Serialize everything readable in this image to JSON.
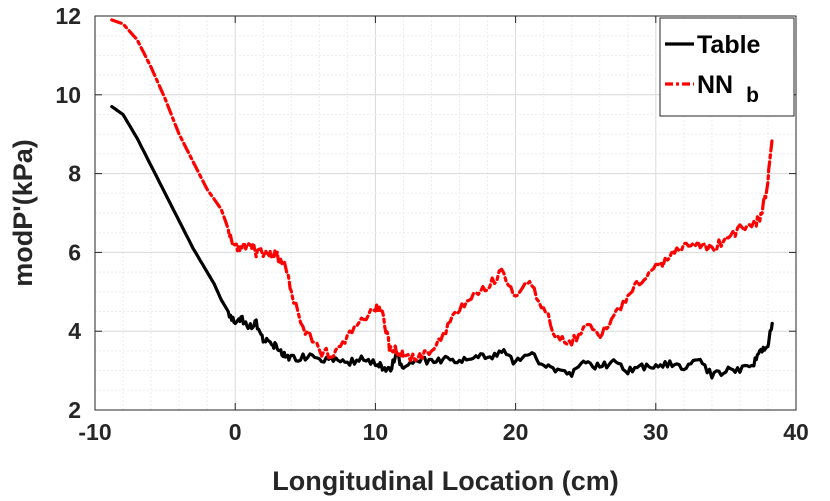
{
  "chart_data": {
    "type": "line",
    "title": "",
    "xlabel": "Longitudinal Location (cm)",
    "ylabel": "modP'(kPa)",
    "xlim": [
      -10,
      40
    ],
    "ylim": [
      2,
      12
    ],
    "xticks": [
      -10,
      0,
      10,
      20,
      30,
      40
    ],
    "yticks": [
      2,
      4,
      6,
      8,
      10,
      12
    ],
    "grid": true,
    "legend_position": "top-right",
    "series": [
      {
        "name": "Table",
        "color": "#000000",
        "style": "solid",
        "x": [
          -8.8,
          -8,
          -7,
          -6,
          -5,
          -4,
          -3,
          -2,
          -1.5,
          -1,
          -0.5,
          0,
          0.5,
          1,
          1.5,
          2,
          2.5,
          3,
          3.5,
          4,
          5,
          6,
          7,
          8,
          9,
          10,
          10.5,
          11,
          11.5,
          12,
          13,
          14,
          15,
          16,
          17,
          18,
          19,
          20,
          21,
          22,
          23,
          24,
          25,
          26,
          27,
          28,
          29,
          30,
          31,
          32,
          33,
          34,
          35,
          36,
          37,
          37.5,
          38,
          38.3
        ],
        "values": [
          9.7,
          9.5,
          8.9,
          8.2,
          7.5,
          6.8,
          6.1,
          5.5,
          5.2,
          4.8,
          4.5,
          4.2,
          4.3,
          4.1,
          4.2,
          3.8,
          3.7,
          3.6,
          3.4,
          3.3,
          3.35,
          3.3,
          3.3,
          3.2,
          3.3,
          3.2,
          3.1,
          3.0,
          3.4,
          3.0,
          3.3,
          3.2,
          3.3,
          3.2,
          3.4,
          3.3,
          3.5,
          3.2,
          3.5,
          3.1,
          3.0,
          2.9,
          3.2,
          3.1,
          3.2,
          3.0,
          3.1,
          3.1,
          3.2,
          3.1,
          3.3,
          2.9,
          3.0,
          3.0,
          3.2,
          3.5,
          3.7,
          4.2
        ]
      },
      {
        "name": "NN",
        "name_subscript": "b",
        "color": "#ff0000",
        "style": "dash-dot",
        "x": [
          -8.8,
          -8,
          -7,
          -6,
          -5,
          -4,
          -3,
          -2,
          -1,
          -0.5,
          0,
          0.5,
          1,
          1.5,
          2,
          2.5,
          3,
          3.5,
          4,
          5,
          6,
          7,
          8,
          9,
          10,
          10.5,
          11,
          11.5,
          12,
          13,
          14,
          15,
          16,
          17,
          18,
          19,
          20,
          21,
          22,
          23,
          24,
          25,
          26,
          27,
          28,
          29,
          30,
          31,
          32,
          33,
          34,
          35,
          36,
          37,
          37.5,
          38,
          38.3
        ],
        "values": [
          11.9,
          11.8,
          11.4,
          10.7,
          9.9,
          9.0,
          8.3,
          7.6,
          7.1,
          6.6,
          6.1,
          6.1,
          6.2,
          6.0,
          6.0,
          6.0,
          5.9,
          5.8,
          5.0,
          4.0,
          3.5,
          3.4,
          3.8,
          4.3,
          4.6,
          4.5,
          3.6,
          3.5,
          3.4,
          3.3,
          3.5,
          4.0,
          4.6,
          4.9,
          5.1,
          5.5,
          4.9,
          5.2,
          4.6,
          3.8,
          3.7,
          4.2,
          3.9,
          4.4,
          4.9,
          5.3,
          5.6,
          5.9,
          6.1,
          6.2,
          6.1,
          6.3,
          6.6,
          6.7,
          6.9,
          7.8,
          8.9
        ]
      }
    ]
  }
}
